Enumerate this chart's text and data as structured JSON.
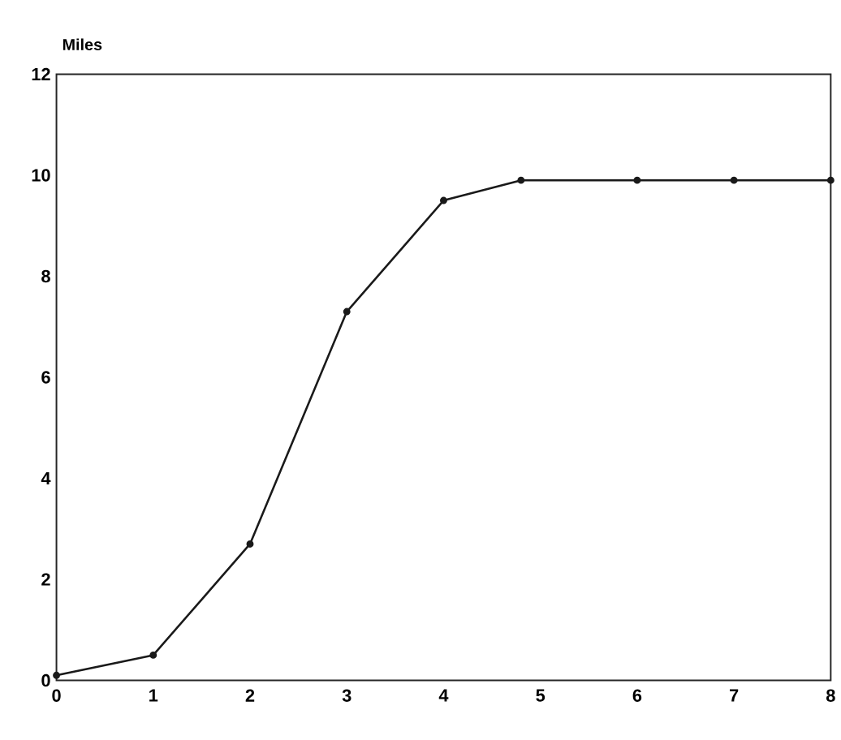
{
  "chart_data": {
    "type": "line",
    "ylabel": "Miles",
    "x": [
      0,
      1,
      2,
      3,
      4,
      4.8,
      6,
      7,
      8
    ],
    "series": [
      {
        "color": "#1a1a1a",
        "values": [
          0.1,
          0.5,
          2.7,
          7.3,
          9.5,
          9.9,
          9.9,
          9.9,
          9.9
        ]
      }
    ],
    "xlim": [
      0,
      8
    ],
    "ylim": [
      0,
      12
    ],
    "xticks": [
      0,
      1,
      2,
      3,
      4,
      5,
      6,
      7,
      8
    ],
    "yticks": [
      0,
      2,
      4,
      6,
      8,
      10,
      12
    ],
    "marker": "circle",
    "line_style": "solid",
    "grid": false
  }
}
